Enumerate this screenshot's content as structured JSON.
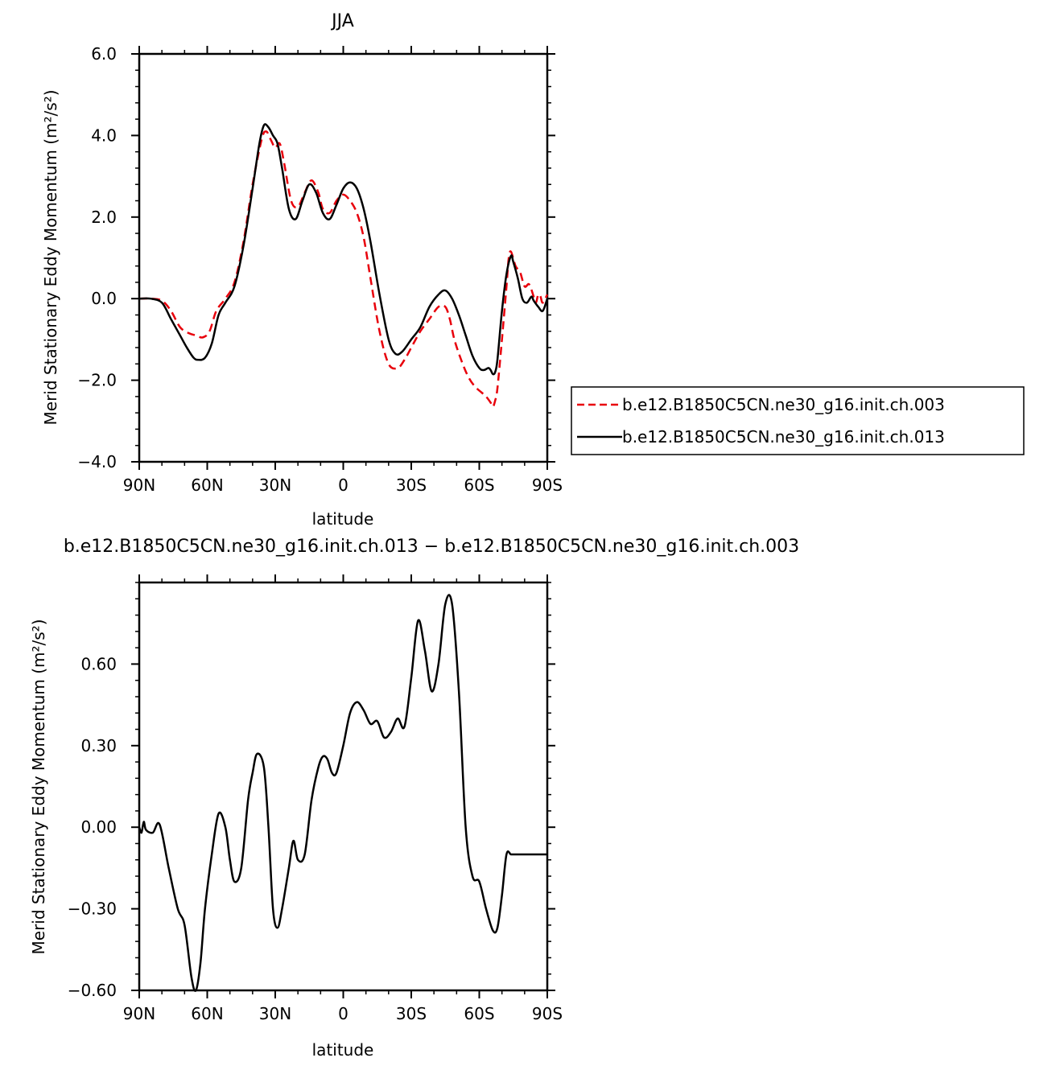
{
  "chart_data": [
    {
      "type": "line",
      "title": "JJA",
      "xlabel": "latitude",
      "ylabel": "Merid Stationary Eddy Momentum (m²/s²)",
      "xlim": [
        -90,
        90
      ],
      "ylim": [
        -4,
        6
      ],
      "x_direction": "north-to-south",
      "xticklabels": [
        "90N",
        "60N",
        "30N",
        "0",
        "30S",
        "60S",
        "90S"
      ],
      "yticklabels": [
        "6.0",
        "4.0",
        "2.0",
        "0.0",
        "−2.0",
        "−4.0"
      ],
      "grid": false,
      "legend": {
        "position": "right-outside"
      },
      "series": [
        {
          "name": "b.e12.B1850C5CN.ne30_g16.init.ch.003",
          "color": "#e8000b",
          "style": "dashed",
          "x": [
            90,
            85,
            80,
            76,
            72,
            68,
            65,
            62,
            59,
            56,
            52,
            48,
            44,
            40,
            36,
            34,
            32,
            30,
            28,
            26,
            23,
            20,
            17,
            14,
            11,
            9,
            6,
            3,
            0,
            -3,
            -6,
            -9,
            -12,
            -16,
            -20,
            -24,
            -27,
            -30,
            -34,
            -38,
            -42,
            -45,
            -47,
            -49,
            -52,
            -55,
            -58,
            -61,
            -63,
            -65,
            -66,
            -67,
            -68,
            -70,
            -72,
            -73,
            -74,
            -76,
            -78,
            -80,
            -82,
            -84,
            -85,
            -86,
            -87,
            -88,
            -90
          ],
          "y": [
            0.0,
            0.0,
            -0.05,
            -0.3,
            -0.7,
            -0.85,
            -0.9,
            -0.95,
            -0.8,
            -0.3,
            0.0,
            0.4,
            1.4,
            2.8,
            3.9,
            4.1,
            3.9,
            3.7,
            3.8,
            3.3,
            2.4,
            2.25,
            2.6,
            2.9,
            2.6,
            2.2,
            2.1,
            2.4,
            2.55,
            2.4,
            2.1,
            1.5,
            0.5,
            -0.8,
            -1.6,
            -1.7,
            -1.5,
            -1.2,
            -0.8,
            -0.5,
            -0.2,
            -0.2,
            -0.5,
            -1.0,
            -1.5,
            -1.9,
            -2.15,
            -2.3,
            -2.4,
            -2.55,
            -2.65,
            -2.5,
            -2.2,
            -1.0,
            0.3,
            1.0,
            1.15,
            0.8,
            0.65,
            0.3,
            0.35,
            0.05,
            -0.1,
            0.1,
            0.05,
            -0.1,
            0.1
          ]
        },
        {
          "name": "b.e12.B1850C5CN.ne30_g16.init.ch.013",
          "color": "#000000",
          "style": "solid",
          "x": [
            90,
            85,
            80,
            76,
            72,
            69,
            66,
            64,
            61,
            58,
            55,
            52,
            48,
            44,
            40,
            37,
            35,
            33,
            31,
            29,
            27,
            24,
            21,
            18,
            15,
            12,
            9,
            6,
            3,
            0,
            -3,
            -6,
            -9,
            -12,
            -16,
            -20,
            -23,
            -26,
            -30,
            -34,
            -38,
            -42,
            -45,
            -48,
            -51,
            -54,
            -57,
            -60,
            -62,
            -64,
            -65,
            -66,
            -67,
            -68,
            -70,
            -72,
            -74,
            -75,
            -77,
            -79,
            -81,
            -83,
            -84,
            -86,
            -88,
            -90
          ],
          "y": [
            0.0,
            0.0,
            -0.1,
            -0.5,
            -0.9,
            -1.2,
            -1.45,
            -1.5,
            -1.45,
            -1.1,
            -0.4,
            -0.1,
            0.3,
            1.3,
            2.7,
            3.8,
            4.25,
            4.2,
            4.0,
            3.8,
            3.2,
            2.2,
            1.95,
            2.4,
            2.8,
            2.6,
            2.1,
            1.95,
            2.3,
            2.7,
            2.85,
            2.7,
            2.2,
            1.4,
            0.1,
            -1.0,
            -1.35,
            -1.3,
            -1.0,
            -0.7,
            -0.2,
            0.1,
            0.2,
            0.0,
            -0.4,
            -0.9,
            -1.4,
            -1.7,
            -1.75,
            -1.7,
            -1.75,
            -1.85,
            -1.8,
            -1.5,
            -0.3,
            0.6,
            1.05,
            0.9,
            0.5,
            0.0,
            -0.1,
            0.05,
            -0.05,
            -0.2,
            -0.3,
            0.0
          ]
        }
      ]
    },
    {
      "type": "line",
      "title": "b.e12.B1850C5CN.ne30_g16.init.ch.013 − b.e12.B1850C5CN.ne30_g16.init.ch.003",
      "xlabel": "latitude",
      "ylabel": "Merid Stationary Eddy Momentum (m²/s²)",
      "xlim": [
        -90,
        90
      ],
      "ylim": [
        -0.6,
        0.9
      ],
      "x_direction": "north-to-south",
      "xticklabels": [
        "90N",
        "60N",
        "30N",
        "0",
        "30S",
        "60S",
        "90S"
      ],
      "yticklabels": [
        "0.60",
        "0.30",
        "0.00",
        "−0.30",
        "−0.60"
      ],
      "grid": false,
      "series": [
        {
          "color": "#000000",
          "style": "solid",
          "x": [
            90,
            89,
            88,
            87,
            84,
            81,
            77,
            73,
            70,
            67,
            65,
            63,
            61,
            58,
            55,
            52,
            50,
            48,
            45,
            42,
            40,
            38,
            35,
            33,
            31,
            29,
            27,
            24,
            22,
            20,
            17,
            14,
            11,
            9,
            7,
            5,
            3,
            0,
            -3,
            -6,
            -9,
            -12,
            -15,
            -18,
            -21,
            -24,
            -27,
            -30,
            -33,
            -36,
            -39,
            -42,
            -45,
            -48,
            -51,
            -54,
            -57,
            -60,
            -63,
            -66,
            -68,
            -70,
            -72,
            -74,
            -76,
            -78,
            -80,
            -82,
            -84,
            -86,
            -88,
            -90
          ],
          "y": [
            0.0,
            -0.02,
            0.02,
            -0.01,
            -0.02,
            0.01,
            -0.15,
            -0.3,
            -0.36,
            -0.55,
            -0.6,
            -0.5,
            -0.3,
            -0.1,
            0.05,
            0.0,
            -0.12,
            -0.2,
            -0.15,
            0.1,
            0.2,
            0.27,
            0.22,
            0.0,
            -0.3,
            -0.37,
            -0.3,
            -0.15,
            -0.05,
            -0.12,
            -0.1,
            0.1,
            0.22,
            0.26,
            0.25,
            0.2,
            0.2,
            0.3,
            0.42,
            0.46,
            0.43,
            0.38,
            0.39,
            0.33,
            0.35,
            0.4,
            0.37,
            0.55,
            0.76,
            0.65,
            0.5,
            0.6,
            0.82,
            0.82,
            0.5,
            0.0,
            -0.18,
            -0.2,
            -0.3,
            -0.38,
            -0.37,
            -0.25,
            -0.1,
            -0.1,
            -0.1,
            -0.1,
            -0.1,
            -0.1,
            -0.1,
            -0.1,
            -0.1,
            -0.1
          ]
        }
      ]
    }
  ]
}
